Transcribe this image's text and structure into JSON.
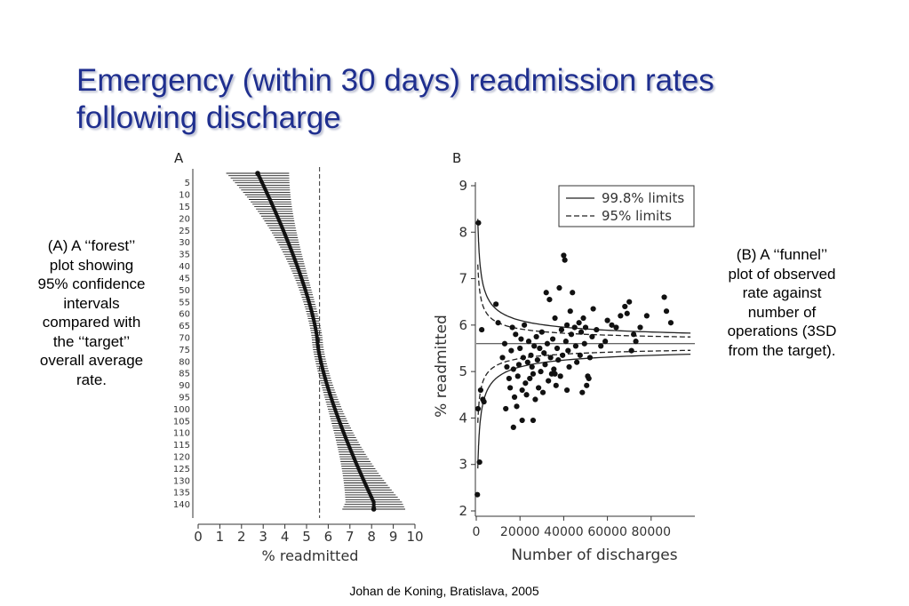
{
  "slide": {
    "title_line1": "Emergency (within 30 days) readmission rates",
    "title_line2": "following discharge",
    "caption_a": [
      "(A) A ‘‘forest’’",
      "plot showing",
      "95% confidence",
      "intervals",
      "compared with",
      "the ‘‘target’’",
      "overall average",
      "rate."
    ],
    "caption_b": [
      "(B) A ‘‘funnel’’",
      "plot of observed",
      "rate against",
      "number of",
      "operations (3SD",
      "from the target)."
    ],
    "footer": "Johan de Koning, Bratislava, 2005"
  },
  "chart_data": [
    {
      "type": "forest",
      "panel_label": "A",
      "title": "",
      "xlabel": "% readmitted",
      "ylabel": "",
      "xlim": [
        0,
        10
      ],
      "xticks": [
        "0",
        "1",
        "2",
        "3",
        "4",
        "5",
        "6",
        "7",
        "8",
        "9",
        "10"
      ],
      "yticks": [
        "5",
        "10",
        "15",
        "20",
        "25",
        "30",
        "35",
        "40",
        "45",
        "50",
        "55",
        "60",
        "65",
        "70",
        "75",
        "80",
        "85",
        "90",
        "95",
        "100",
        "105",
        "110",
        "115",
        "120",
        "125",
        "130",
        "135",
        "140"
      ],
      "n_units": 142,
      "target_rate": 5.6,
      "rate_first": 2.4,
      "rate_last": 8.1,
      "grid": false
    },
    {
      "type": "scatter",
      "panel_label": "B",
      "title": "",
      "xlabel": "Number of discharges",
      "ylabel": "% readmitted",
      "xlim": [
        0,
        100000
      ],
      "ylim": [
        2,
        9
      ],
      "xticks": [
        "0",
        "20000",
        "40000",
        "60000",
        "80000"
      ],
      "yticks": [
        "2",
        "3",
        "4",
        "5",
        "6",
        "7",
        "8",
        "9"
      ],
      "target": 5.6,
      "legend": {
        "position": "top-right",
        "entries": [
          "99.8% limits",
          "95% limits"
        ]
      },
      "grid": false,
      "points": [
        [
          500,
          2.35
        ],
        [
          800,
          4.2
        ],
        [
          1000,
          8.2
        ],
        [
          1500,
          3.05
        ],
        [
          2000,
          4.6
        ],
        [
          3000,
          4.4
        ],
        [
          3500,
          4.35
        ],
        [
          2500,
          5.9
        ],
        [
          9000,
          6.45
        ],
        [
          12000,
          5.3
        ],
        [
          13000,
          5.6
        ],
        [
          14000,
          5.1
        ],
        [
          15000,
          4.85
        ],
        [
          15500,
          4.65
        ],
        [
          16000,
          5.45
        ],
        [
          17000,
          5.05
        ],
        [
          17500,
          4.45
        ],
        [
          18000,
          5.8
        ],
        [
          18500,
          4.25
        ],
        [
          19000,
          4.9
        ],
        [
          19500,
          5.15
        ],
        [
          20000,
          5.5
        ],
        [
          20500,
          5.7
        ],
        [
          21000,
          4.6
        ],
        [
          21500,
          5.3
        ],
        [
          22000,
          6.0
        ],
        [
          22500,
          4.75
        ],
        [
          23000,
          4.5
        ],
        [
          23500,
          5.2
        ],
        [
          24000,
          5.65
        ],
        [
          24500,
          4.85
        ],
        [
          25000,
          5.35
        ],
        [
          25500,
          5.1
        ],
        [
          26000,
          4.95
        ],
        [
          26500,
          5.55
        ],
        [
          27000,
          4.4
        ],
        [
          27500,
          5.75
        ],
        [
          28000,
          5.25
        ],
        [
          28500,
          4.65
        ],
        [
          29000,
          5.5
        ],
        [
          29500,
          5.0
        ],
        [
          30000,
          5.85
        ],
        [
          30500,
          4.55
        ],
        [
          31000,
          5.4
        ],
        [
          31500,
          5.15
        ],
        [
          32000,
          6.7
        ],
        [
          32500,
          5.6
        ],
        [
          33000,
          4.8
        ],
        [
          33500,
          6.55
        ],
        [
          34000,
          5.3
        ],
        [
          34500,
          4.95
        ],
        [
          35000,
          5.7
        ],
        [
          35500,
          5.05
        ],
        [
          36000,
          6.15
        ],
        [
          36500,
          4.7
        ],
        [
          37000,
          5.5
        ],
        [
          37500,
          5.25
        ],
        [
          38000,
          6.8
        ],
        [
          38500,
          4.9
        ],
        [
          39000,
          5.9
        ],
        [
          39500,
          5.35
        ],
        [
          40000,
          7.5
        ],
        [
          40500,
          7.4
        ],
        [
          41000,
          5.65
        ],
        [
          41500,
          6.0
        ],
        [
          42000,
          5.45
        ],
        [
          42500,
          5.1
        ],
        [
          43000,
          6.3
        ],
        [
          43500,
          5.8
        ],
        [
          44000,
          6.7
        ],
        [
          45000,
          5.95
        ],
        [
          45500,
          5.55
        ],
        [
          46000,
          5.2
        ],
        [
          47000,
          6.05
        ],
        [
          47500,
          5.35
        ],
        [
          48000,
          5.85
        ],
        [
          48500,
          4.55
        ],
        [
          49000,
          6.15
        ],
        [
          49500,
          5.6
        ],
        [
          50000,
          5.95
        ],
        [
          51000,
          4.9
        ],
        [
          52000,
          5.3
        ],
        [
          53000,
          5.75
        ],
        [
          53500,
          6.35
        ],
        [
          55000,
          5.9
        ],
        [
          57000,
          5.55
        ],
        [
          59000,
          5.65
        ],
        [
          60000,
          6.1
        ],
        [
          62000,
          6.0
        ],
        [
          64000,
          5.95
        ],
        [
          66000,
          6.2
        ],
        [
          68000,
          6.4
        ],
        [
          69000,
          6.25
        ],
        [
          70000,
          6.5
        ],
        [
          71000,
          5.45
        ],
        [
          72000,
          5.8
        ],
        [
          73000,
          5.65
        ],
        [
          75000,
          5.95
        ],
        [
          78000,
          6.2
        ],
        [
          86000,
          6.6
        ],
        [
          87000,
          6.3
        ],
        [
          89000,
          6.05
        ],
        [
          17000,
          3.8
        ],
        [
          21000,
          3.95
        ],
        [
          26000,
          3.95
        ],
        [
          10000,
          6.05
        ],
        [
          13500,
          4.2
        ],
        [
          16500,
          5.95
        ],
        [
          36000,
          4.95
        ],
        [
          41500,
          4.6
        ],
        [
          50500,
          4.7
        ],
        [
          51500,
          4.85
        ]
      ]
    }
  ]
}
